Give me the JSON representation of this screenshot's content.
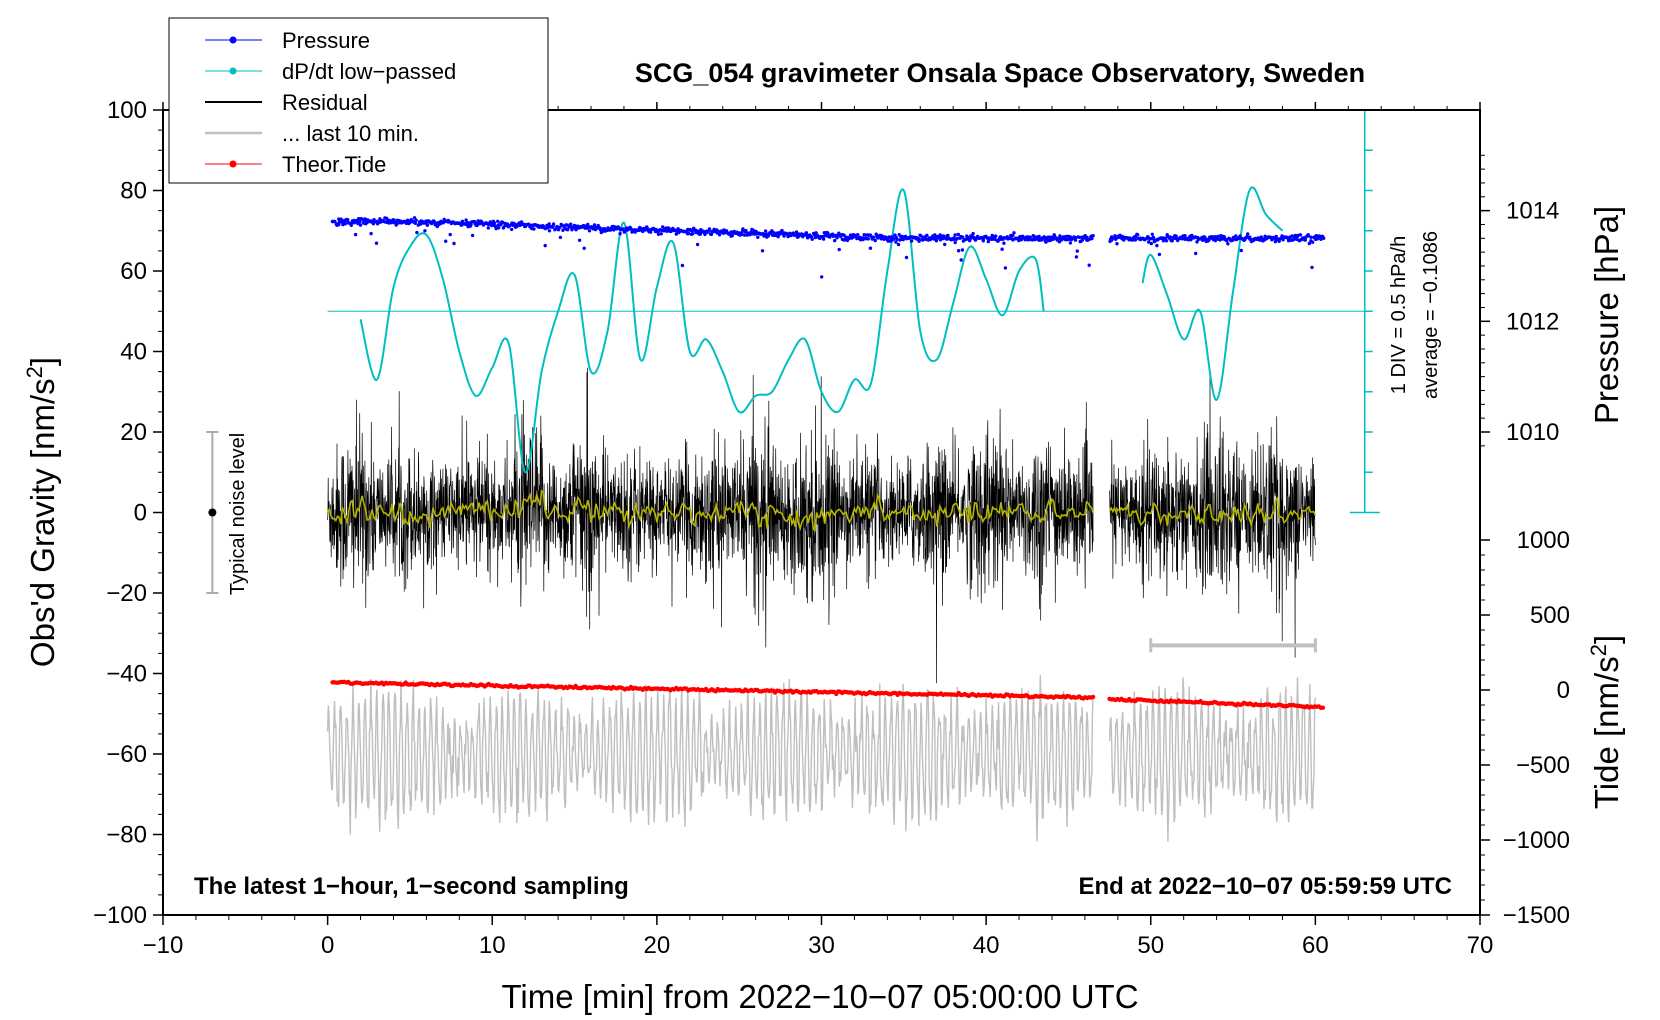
{
  "chart_data": {
    "type": "line",
    "title": "SCG_054 gravimeter Onsala Space Observatory, Sweden",
    "xlabel": "Time [min] from 2022−10−07 05:00:00 UTC",
    "ylabel": "Obs'd Gravity [nm/s",
    "ylabel_sup": "2",
    "ylabel_end": "]",
    "xlim": [
      -10,
      70
    ],
    "ylim": [
      -100,
      100
    ],
    "x_ticks": [
      -10,
      0,
      10,
      20,
      30,
      40,
      50,
      60,
      70
    ],
    "x_tick_labels": [
      "−10",
      "0",
      "10",
      "20",
      "30",
      "40",
      "50",
      "60",
      "70"
    ],
    "y_ticks": [
      -100,
      -80,
      -60,
      -40,
      -20,
      0,
      20,
      40,
      60,
      80,
      100
    ],
    "y_tick_labels": [
      "−100",
      "−80",
      "−60",
      "−40",
      "−20",
      "0",
      "20",
      "40",
      "60",
      "80",
      "100"
    ],
    "right_axis_pressure": {
      "label": "Pressure [hPa]",
      "ticks": [
        1010,
        1012,
        1014
      ],
      "tick_labels": [
        "1010",
        "1012",
        "1014"
      ],
      "gravity_at": [
        20,
        50,
        75
      ]
    },
    "right_axis_tide": {
      "label": "Tide [nm/s",
      "label_sup": "2",
      "label_end": "]",
      "ticks": [
        -1500,
        -1000,
        -500,
        0,
        500,
        1000
      ],
      "tick_labels": [
        "−1500",
        "−1000",
        "−500",
        "0",
        "500",
        "1000"
      ],
      "range": [
        -1500,
        1000
      ]
    },
    "legend": [
      {
        "name": "Pressure",
        "color": "#0000ff",
        "marker": true
      },
      {
        "name": "dP/dt low−passed",
        "color": "#00bfbf",
        "marker": true
      },
      {
        "name": "Residual",
        "color": "#000000",
        "marker": false
      },
      {
        "name": "... last 10 min.",
        "color": "#bfbfbf",
        "marker": false
      },
      {
        "name": "Theor.Tide",
        "color": "#ff0000",
        "marker": true
      }
    ],
    "legend_position": "top-left",
    "dpdt": {
      "baseline_label": "average = −0.1086",
      "scale_label": "1 DIV = 0.5 hPa/h",
      "baseline_gravity": 50,
      "scale_x": 63,
      "scale_range": [
        0,
        100
      ],
      "div_step": 10,
      "segments": [
        {
          "x": [
            2,
            3,
            4,
            5,
            6,
            7,
            8,
            9,
            10,
            11,
            12,
            13,
            14,
            15,
            16,
            17,
            18,
            19,
            20,
            21,
            22,
            23,
            24,
            25,
            26,
            27,
            28,
            29,
            30,
            31,
            32,
            33,
            34,
            35,
            36,
            37,
            38,
            39,
            40,
            41,
            42,
            43,
            43.5
          ],
          "y": [
            48,
            33,
            56,
            66,
            69,
            58,
            40,
            29,
            36,
            42,
            10,
            35,
            50,
            59,
            35,
            45,
            72,
            38,
            56,
            67,
            40,
            43,
            35,
            25,
            29,
            30,
            38,
            43,
            30,
            25,
            33,
            32,
            60,
            80,
            45,
            38,
            52,
            66,
            58,
            49,
            60,
            63,
            50
          ]
        },
        {
          "x": [
            49.5,
            50,
            51,
            52,
            53,
            54,
            55,
            56,
            57,
            58
          ],
          "y": [
            57,
            64,
            54,
            43,
            50,
            28,
            55,
            80,
            74,
            70
          ]
        }
      ]
    },
    "pressure": {
      "color": "#0000ff",
      "segments": [
        {
          "x": [
            0.3,
            5,
            10,
            15,
            20,
            25,
            30,
            35,
            40,
            46.5
          ],
          "hpa": [
            1013.8,
            1013.8,
            1013.75,
            1013.7,
            1013.65,
            1013.6,
            1013.55,
            1013.5,
            1013.5,
            1013.5
          ]
        },
        {
          "x": [
            47.5,
            50,
            55,
            60.5
          ],
          "hpa": [
            1013.5,
            1013.5,
            1013.5,
            1013.5
          ]
        }
      ],
      "scatter_sd": 0.06
    },
    "theor_tide": {
      "color": "#ff0000",
      "segments": [
        {
          "x": [
            0.3,
            46.5
          ],
          "tide": [
            50,
            -50
          ]
        },
        {
          "x": [
            47.5,
            60.5
          ],
          "tide": [
            -60,
            -115
          ]
        }
      ]
    },
    "residual": {
      "color": "#000000",
      "smooth_color": "#b5b500",
      "segments": [
        {
          "x0": 0,
          "x1": 46.5
        },
        {
          "x0": 47.5,
          "x1": 60
        }
      ],
      "typical_amplitude": 11
    },
    "last_10_min": {
      "color": "#bfbfbf",
      "bracket_x": [
        50,
        60
      ],
      "bracket_gravity": -33,
      "offset_gravity": -60,
      "typical_amplitude": 12
    },
    "noise_bar": {
      "label": "Typical noise level",
      "x": -7,
      "range": [
        -20,
        20
      ],
      "center": 0
    },
    "annotations": {
      "left": "The latest 1−hour, 1−second sampling",
      "right": "End at 2022−10−07 05:59:59 UTC"
    }
  }
}
